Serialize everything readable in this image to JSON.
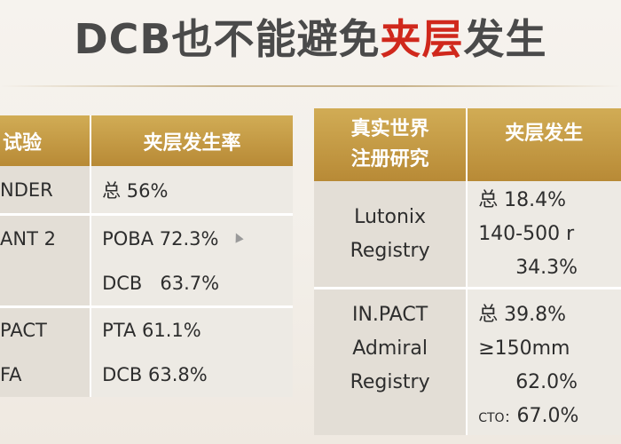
{
  "title": {
    "prefix": "DCB也不能避免",
    "highlight": "夹层",
    "suffix": "发生"
  },
  "colors": {
    "highlight_red": "#d0281c",
    "header_gold": "#c49a45",
    "title_gray": "#4a4a4a"
  },
  "left_table": {
    "headers": [
      "试验",
      "夹层发生率"
    ],
    "rows": [
      {
        "trial": "NDER",
        "rates": [
          "总 56%"
        ]
      },
      {
        "trial": "ANT 2",
        "rates": [
          "POBA 72.3%",
          "DCB   63.7%"
        ]
      },
      {
        "trial": "PACT",
        "trial2": "FA",
        "rates": [
          "PTA 61.1%",
          "DCB 63.8%"
        ]
      }
    ]
  },
  "right_table": {
    "headers": [
      "真实世界",
      "注册研究",
      "夹层发生"
    ],
    "rows": [
      {
        "name": [
          "Lutonix",
          "Registry"
        ],
        "rates": [
          "总 18.4%",
          "140-500 r",
          "34.3%"
        ]
      },
      {
        "name": [
          "IN.PACT",
          "Admiral",
          "Registry"
        ],
        "rates": [
          "总 39.8%",
          "≥150mm",
          "62.0%",
          "67.0%"
        ],
        "cto_label": "CTO："
      }
    ]
  }
}
